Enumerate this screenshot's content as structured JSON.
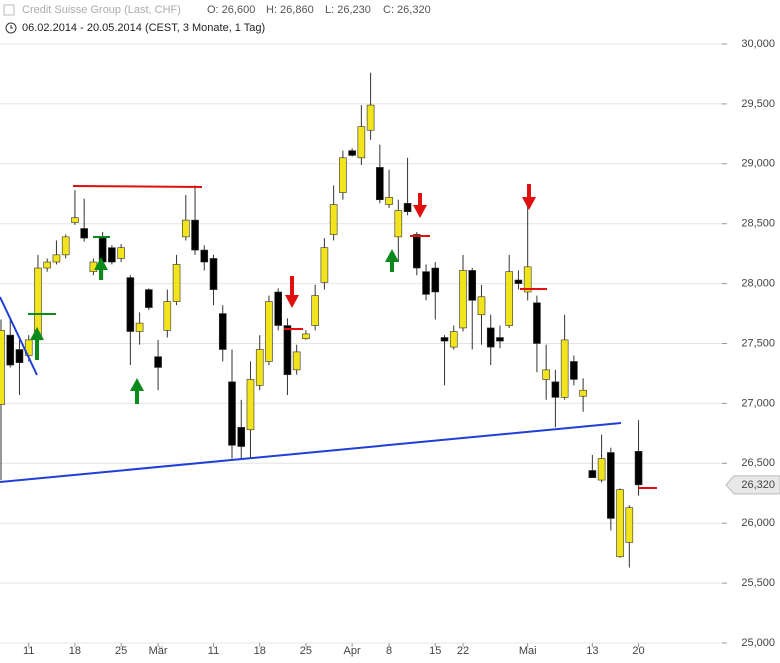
{
  "chart_data": {
    "type": "candlestick",
    "title": "Credit Suisse Group (Last, CHF)",
    "ohlc_labels": [
      "O: 26,600",
      "H: 26,860",
      "L: 26,230",
      "C: 26,320"
    ],
    "subtitle": "06.02.2014 - 20.05.2014 (CEST, 3 Monate, 1 Tag)",
    "categories": [
      null,
      null,
      null,
      "11",
      null,
      null,
      null,
      null,
      "18",
      null,
      null,
      null,
      null,
      "25",
      null,
      null,
      null,
      "Mär",
      null,
      null,
      null,
      null,
      null,
      "11",
      null,
      null,
      null,
      null,
      "18",
      null,
      null,
      null,
      null,
      "25",
      null,
      null,
      null,
      null,
      "Apr",
      null,
      null,
      null,
      "8",
      null,
      null,
      null,
      null,
      "15",
      null,
      null,
      "22",
      null,
      null,
      null,
      null,
      null,
      null,
      "Mai",
      null,
      null,
      null,
      null,
      null,
      null,
      "13",
      null,
      null,
      null,
      null,
      "20"
    ],
    "open": [
      26990,
      27570,
      27450,
      27400,
      27530,
      28130,
      28180,
      28240,
      28510,
      28460,
      28100,
      28380,
      28300,
      28210,
      28050,
      27600,
      27950,
      27390,
      27610,
      27850,
      28390,
      28530,
      28280,
      28210,
      27750,
      27180,
      26800,
      26780,
      27150,
      27350,
      27930,
      27650,
      27280,
      27540,
      27650,
      28010,
      28410,
      28760,
      29110,
      29050,
      29280,
      28970,
      28660,
      28390,
      28670,
      28410,
      28100,
      28130,
      27550,
      27470,
      27630,
      28110,
      27740,
      27630,
      27550,
      27650,
      28030,
      27930,
      27840,
      27200,
      27180,
      27050,
      27350,
      27060,
      26440,
      26360,
      26590,
      25720,
      25840,
      26600
    ],
    "high": [
      27700,
      27710,
      27530,
      27570,
      28240,
      28210,
      28360,
      28410,
      28780,
      28710,
      28210,
      28430,
      28320,
      28330,
      28070,
      27760,
      27960,
      27530,
      27950,
      28240,
      28740,
      28820,
      28320,
      28240,
      27820,
      27450,
      27030,
      27350,
      27570,
      27900,
      27960,
      27710,
      27490,
      27610,
      27990,
      28380,
      28820,
      29110,
      29130,
      29490,
      29760,
      29160,
      28950,
      28700,
      29050,
      28430,
      28160,
      28180,
      27570,
      27650,
      28240,
      28130,
      27990,
      27740,
      27650,
      28240,
      28110,
      28760,
      27900,
      27490,
      27280,
      27740,
      27400,
      27210,
      26570,
      26740,
      26630,
      26290,
      26150,
      26860
    ],
    "low": [
      26360,
      27300,
      27070,
      27350,
      27490,
      28100,
      28160,
      28210,
      28490,
      28350,
      28070,
      28030,
      28160,
      28180,
      27320,
      27490,
      27780,
      27110,
      27550,
      27820,
      28360,
      28240,
      28110,
      27820,
      27350,
      26540,
      26540,
      26540,
      27110,
      27320,
      27610,
      27070,
      27240,
      27530,
      27610,
      27950,
      28360,
      28700,
      29060,
      28990,
      29200,
      28670,
      28630,
      28180,
      28570,
      28070,
      27860,
      27700,
      27150,
      27450,
      27600,
      27450,
      27490,
      27320,
      27460,
      27630,
      27950,
      27860,
      27260,
      27030,
      26800,
      27030,
      27150,
      26930,
      26380,
      26340,
      25940,
      25710,
      25630,
      26230
    ],
    "close": [
      27610,
      27320,
      27340,
      27530,
      28130,
      28180,
      28240,
      28390,
      28550,
      28380,
      28180,
      28180,
      28180,
      28300,
      27600,
      27670,
      27800,
      27300,
      27850,
      28160,
      28530,
      28280,
      28180,
      27950,
      27450,
      26650,
      26640,
      27200,
      27450,
      27850,
      27650,
      27240,
      27430,
      27580,
      27900,
      28300,
      28660,
      29050,
      29070,
      29310,
      29490,
      28700,
      28720,
      28610,
      28600,
      28130,
      27910,
      27930,
      27520,
      27600,
      28110,
      27860,
      27890,
      27470,
      27520,
      28100,
      28000,
      28140,
      27500,
      27280,
      27050,
      27530,
      27200,
      27110,
      26380,
      26540,
      26040,
      26280,
      26130,
      26320
    ],
    "up_color": "#f2e41c",
    "down_color": "#000000",
    "ylim": [
      25000,
      30000
    ],
    "yticks": [
      {
        "value": 25000,
        "label": "25,000"
      },
      {
        "value": 25500,
        "label": "25,500"
      },
      {
        "value": 26000,
        "label": "26,000"
      },
      {
        "value": 26500,
        "label": "26,500"
      },
      {
        "value": 27000,
        "label": "27,000"
      },
      {
        "value": 27500,
        "label": "27,500"
      },
      {
        "value": 28000,
        "label": "28,000"
      },
      {
        "value": 28500,
        "label": "28,500"
      },
      {
        "value": 29000,
        "label": "29,000"
      },
      {
        "value": 29500,
        "label": "29,500"
      },
      {
        "value": 30000,
        "label": "30,000"
      }
    ],
    "last_price": {
      "value": 26320,
      "label": "26,320"
    },
    "grid": true
  }
}
